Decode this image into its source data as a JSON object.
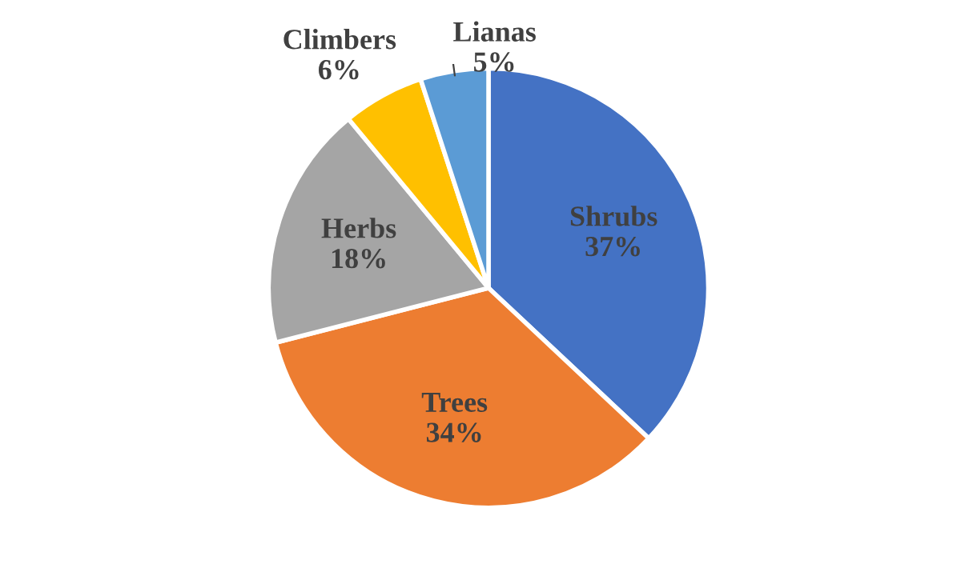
{
  "chart_data": {
    "type": "pie",
    "categories": [
      "Shrubs",
      "Trees",
      "Herbs",
      "Climbers",
      "Lianas"
    ],
    "values": [
      37,
      34,
      18,
      6,
      5
    ],
    "colors": [
      "#4472c4",
      "#ed7d31",
      "#a5a5a5",
      "#ffc000",
      "#5b9bd5"
    ],
    "value_labels": [
      "37%",
      "34%",
      "18%",
      "6%",
      "5%"
    ],
    "legend": false
  }
}
